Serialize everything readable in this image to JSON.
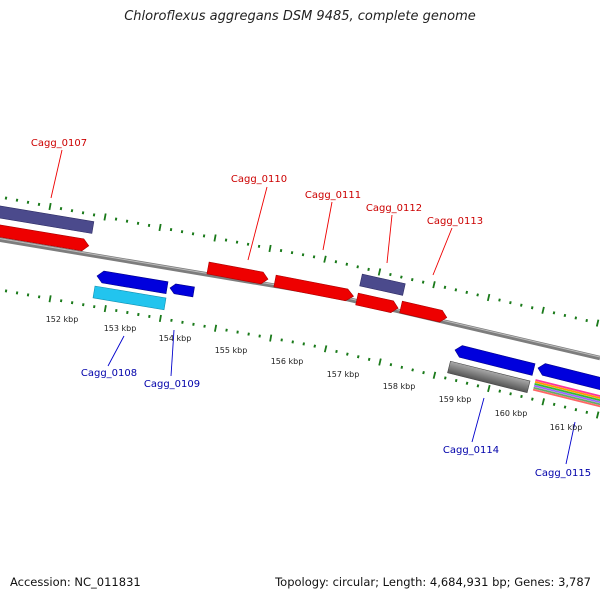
{
  "title": "Chloroflexus aggregans DSM 9485, complete genome",
  "footer": {
    "accession": "Accession: NC_011831",
    "summary": "Topology: circular; Length: 4,684,931 bp; Genes: 3,787"
  },
  "colors": {
    "forward_strand_gene_label": "#cc0000",
    "reverse_strand_gene_label": "#0000aa",
    "backbone": "#808080",
    "tick": "#1a7a1a",
    "red_feature": "#ee0000",
    "blue_feature": "#0000dd",
    "slate_feature": "#4b4a8c",
    "cyan_feature": "#22c4ee",
    "gray_feature": "#6e6e6e"
  },
  "kbp_labels": [
    "152 kbp",
    "153 kbp",
    "154 kbp",
    "155 kbp",
    "156 kbp",
    "157 kbp",
    "158 kbp",
    "159 kbp",
    "160 kbp",
    "161 kbp"
  ],
  "gene_labels": {
    "top": [
      "Cagg_0107",
      "Cagg_0110",
      "Cagg_0111",
      "Cagg_0112",
      "Cagg_0113"
    ],
    "bottom": [
      "Cagg_0108",
      "Cagg_0109",
      "Cagg_0114",
      "Cagg_0115"
    ]
  }
}
